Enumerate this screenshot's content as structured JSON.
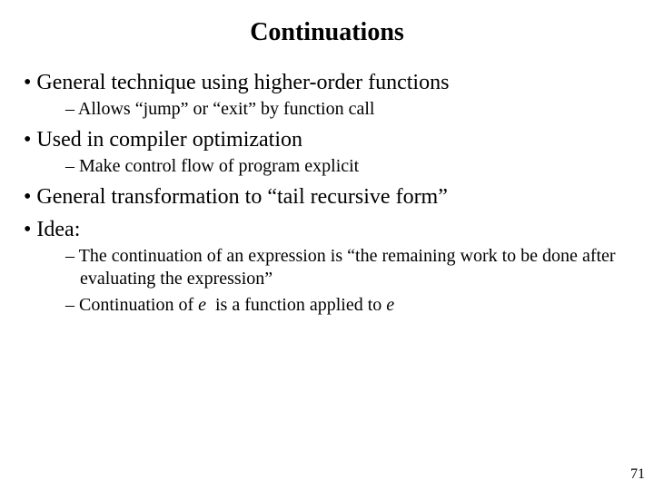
{
  "title": "Continuations",
  "items": [
    {
      "level": 1,
      "text": "General technique using higher-order functions"
    },
    {
      "level": 2,
      "text": "Allows “jump” or “exit” by function call"
    },
    {
      "level": 1,
      "text": "Used in compiler optimization"
    },
    {
      "level": 2,
      "text": "Make control flow of program explicit"
    },
    {
      "level": 1,
      "text": "General transformation to “tail recursive form”"
    },
    {
      "level": 1,
      "text": "Idea:"
    },
    {
      "level": 2,
      "text": "The continuation of an expression is “the remaining work to be done after evaluating the expression”"
    },
    {
      "level": 2,
      "html": "Continuation of <span class=\"italic\">e</span>  is a function applied to <span class=\"italic\">e</span>"
    }
  ],
  "page_number": "71",
  "colors": {
    "background": "#ffffff",
    "text": "#000000"
  },
  "typography": {
    "family": "Times New Roman",
    "title_pt": 28,
    "lvl1_pt": 24,
    "lvl2_pt": 20,
    "pagenum_pt": 16
  }
}
